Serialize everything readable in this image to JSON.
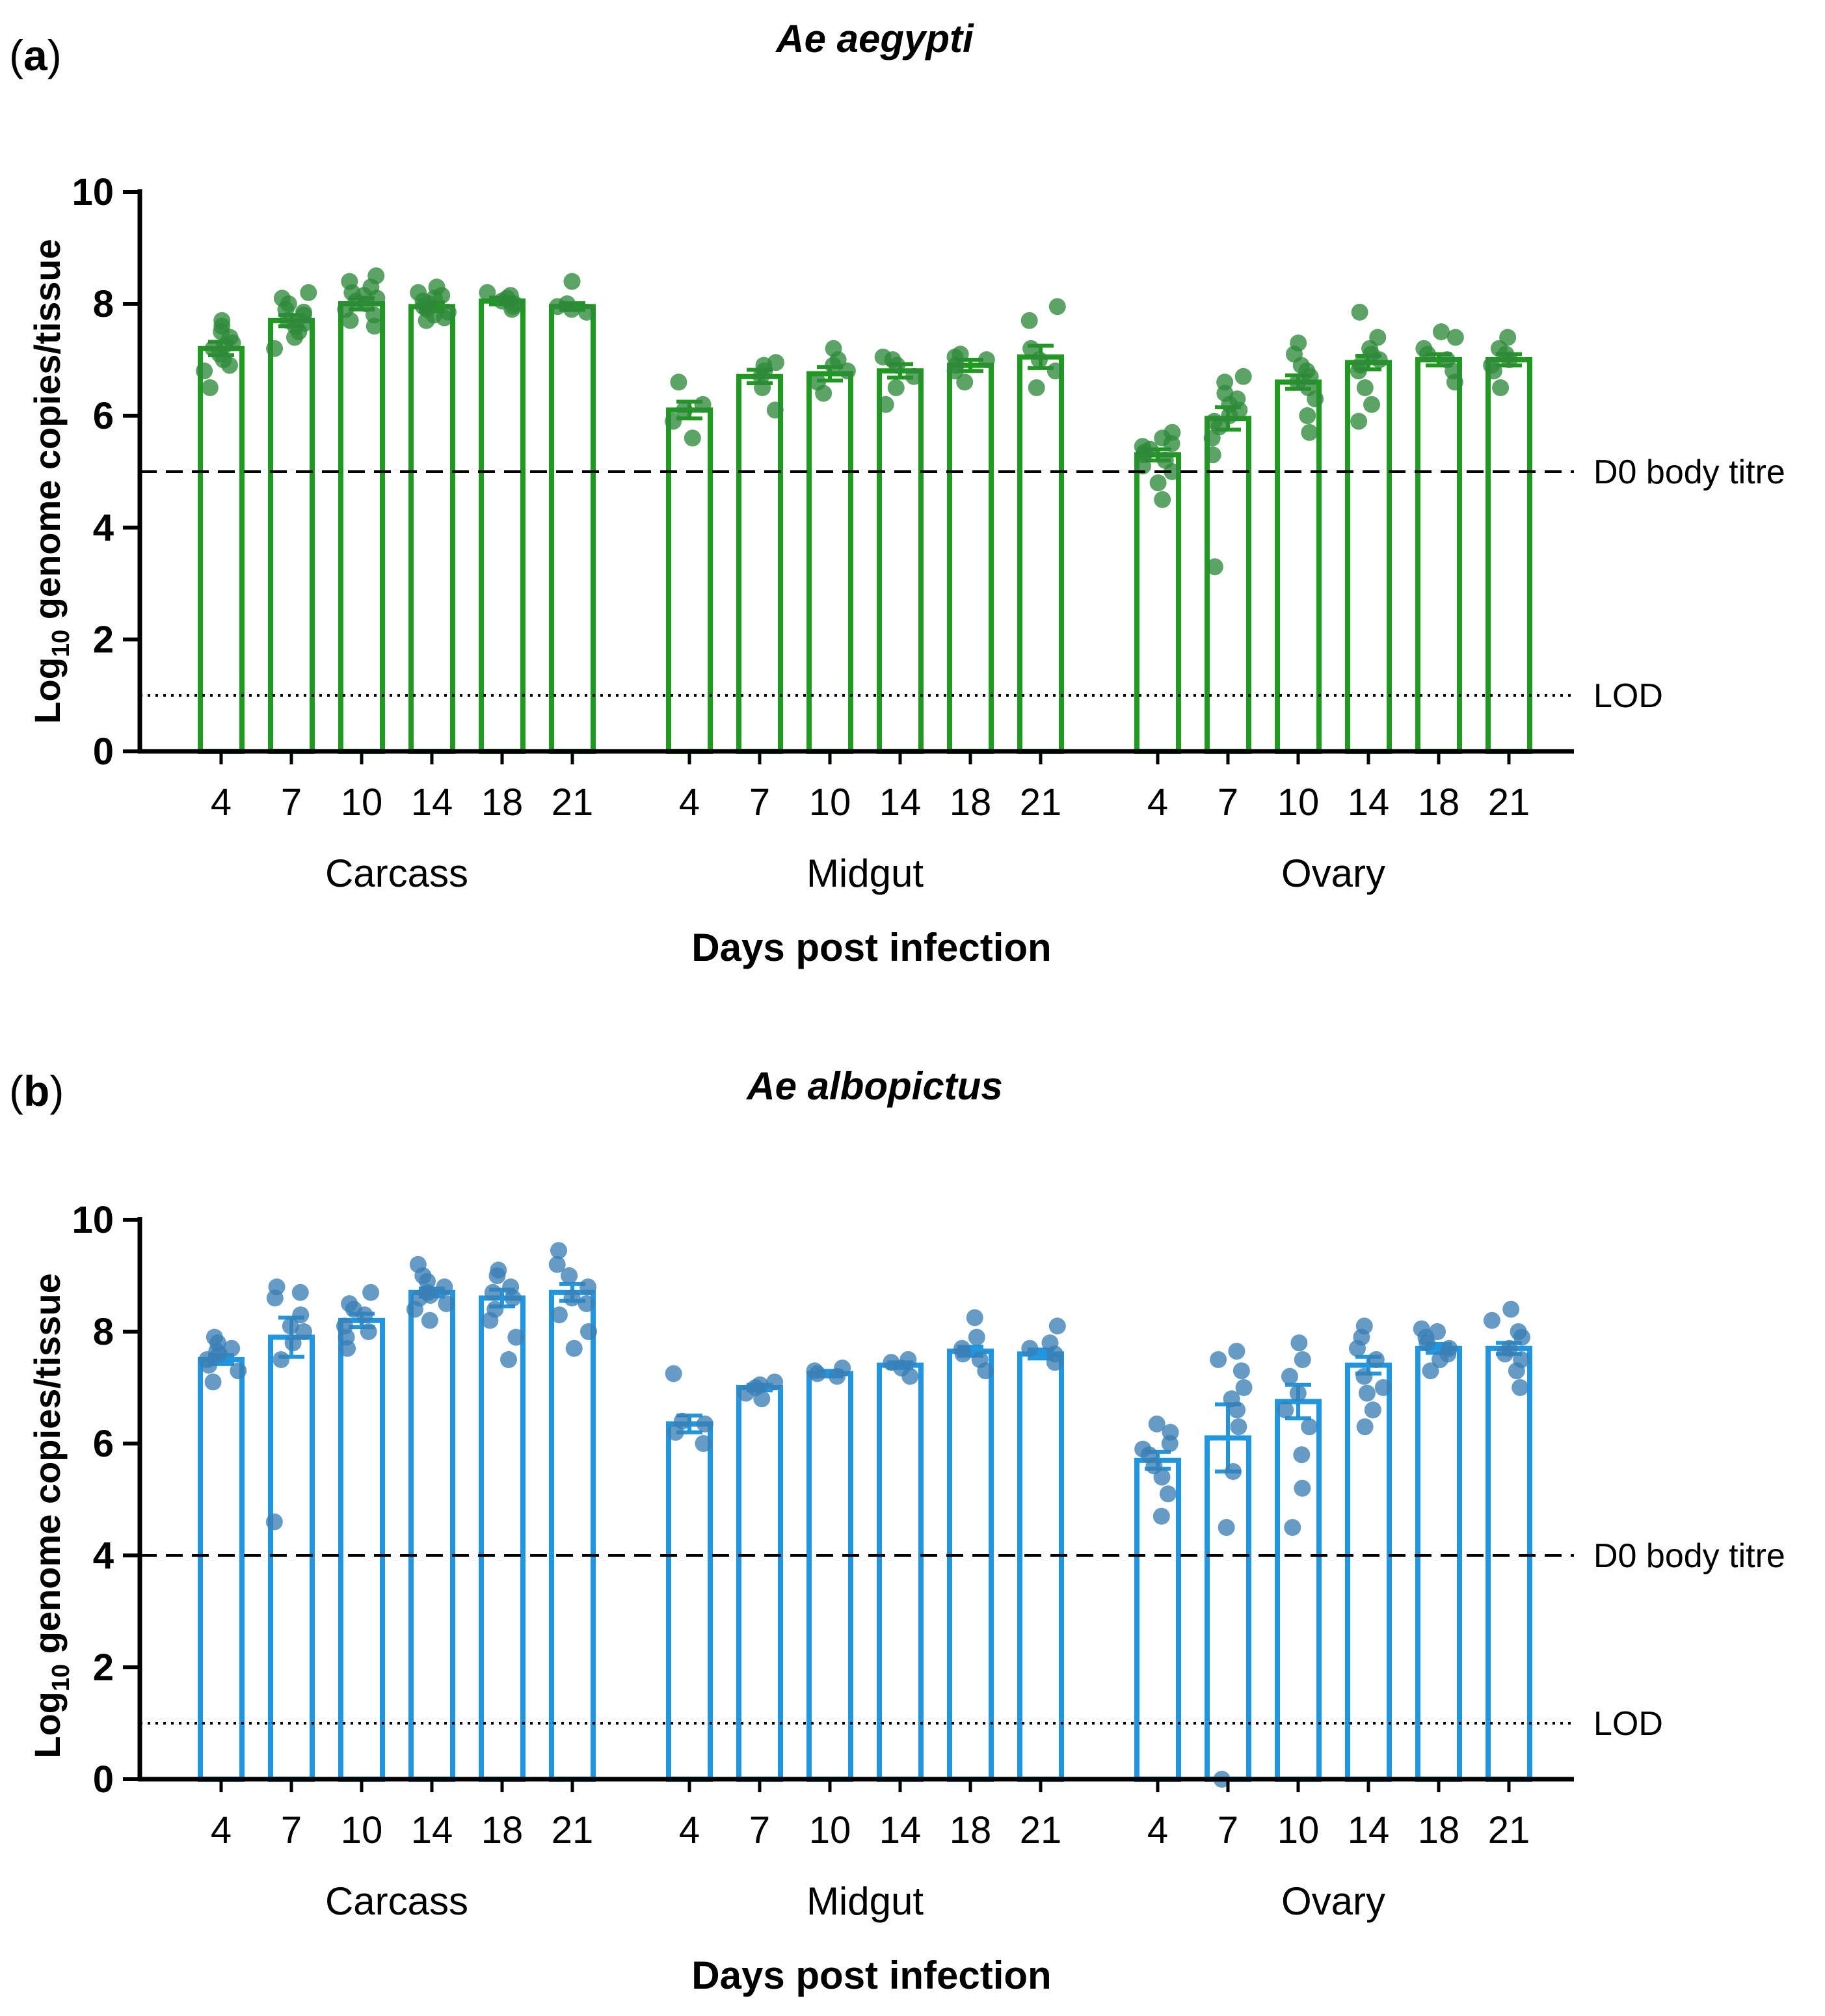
{
  "chart_data": [
    {
      "type": "bar",
      "panel_label": "a",
      "title": "Ae aegypti",
      "ylabel_prefix": "Log",
      "ylabel_sub": "10",
      "ylabel_rest": " genome copies/tissue",
      "xlabel": "Days post infection",
      "ylim": [
        0,
        10
      ],
      "yticks": [
        "0",
        "2",
        "4",
        "6",
        "8",
        "10"
      ],
      "color": "#1e9a1e",
      "point_color": "#2e8b3a",
      "reference_lines": [
        {
          "label": "D0 body titre",
          "value": 5,
          "style": "dashed"
        },
        {
          "label": "LOD",
          "value": 1,
          "style": "dotted"
        }
      ],
      "groups": [
        {
          "name": "Carcass",
          "days": [
            "4",
            "7",
            "10",
            "14",
            "18",
            "21"
          ],
          "means": [
            7.2,
            7.7,
            8.0,
            7.95,
            8.05,
            7.95
          ],
          "sem": [
            0.12,
            0.1,
            0.1,
            0.08,
            0.06,
            0.06
          ],
          "points": [
            [
              6.5,
              6.9,
              7.0,
              7.1,
              7.2,
              7.3,
              7.4,
              7.5,
              7.6,
              7.7,
              6.8,
              7.25
            ],
            [
              7.2,
              7.4,
              7.6,
              7.7,
              7.8,
              7.9,
              8.0,
              8.1,
              8.2,
              7.5,
              7.65,
              7.85
            ],
            [
              7.6,
              7.8,
              7.9,
              8.0,
              8.1,
              8.2,
              8.3,
              8.4,
              8.5,
              7.7,
              8.05,
              8.15
            ],
            [
              7.7,
              7.8,
              7.9,
              8.0,
              8.1,
              8.2,
              8.3,
              7.85,
              8.05,
              7.95,
              8.15,
              7.75
            ],
            [
              7.9,
              8.0,
              8.1,
              8.2,
              8.05,
              7.95,
              8.15
            ],
            [
              7.85,
              7.9,
              8.0,
              8.4,
              7.95
            ]
          ]
        },
        {
          "name": "Midgut",
          "days": [
            "4",
            "7",
            "10",
            "14",
            "18",
            "21"
          ],
          "means": [
            6.1,
            6.7,
            6.75,
            6.8,
            6.9,
            7.05
          ],
          "sem": [
            0.15,
            0.12,
            0.12,
            0.12,
            0.1,
            0.2
          ],
          "points": [
            [
              5.6,
              5.9,
              6.1,
              6.2,
              6.6
            ],
            [
              6.1,
              6.5,
              6.7,
              6.8,
              6.9,
              6.95
            ],
            [
              6.4,
              6.6,
              6.8,
              6.9,
              7.0,
              7.2
            ],
            [
              6.2,
              6.5,
              6.7,
              6.9,
              7.0,
              7.05
            ],
            [
              6.6,
              6.8,
              6.9,
              7.0,
              7.05,
              7.1
            ],
            [
              6.5,
              6.8,
              7.0,
              7.2,
              7.7,
              7.95
            ]
          ]
        },
        {
          "name": "Ovary",
          "days": [
            "4",
            "7",
            "10",
            "14",
            "18",
            "21"
          ],
          "means": [
            5.3,
            5.95,
            6.6,
            6.95,
            7.0,
            7.0
          ],
          "sem": [
            0.1,
            0.2,
            0.12,
            0.12,
            0.1,
            0.1
          ],
          "points": [
            [
              4.5,
              4.8,
              5.0,
              5.2,
              5.3,
              5.4,
              5.5,
              5.6,
              5.7,
              5.1,
              5.35,
              5.45
            ],
            [
              3.3,
              5.3,
              5.6,
              5.8,
              6.0,
              6.2,
              6.4,
              6.6,
              6.7,
              5.9,
              6.1,
              6.3
            ],
            [
              5.7,
              6.0,
              6.3,
              6.5,
              6.7,
              6.9,
              7.1,
              7.3,
              6.6,
              6.8
            ],
            [
              5.9,
              6.2,
              6.5,
              6.8,
              7.0,
              7.2,
              7.4,
              7.85,
              6.9,
              7.1
            ],
            [
              6.6,
              6.8,
              7.0,
              7.2,
              7.4,
              7.5,
              7.1
            ],
            [
              6.5,
              6.8,
              7.0,
              7.2,
              7.4,
              7.1,
              6.9
            ]
          ]
        }
      ]
    },
    {
      "type": "bar",
      "panel_label": "b",
      "title": "Ae albopictus",
      "ylabel_prefix": "Log",
      "ylabel_sub": "10",
      "ylabel_rest": " genome copies/tissue",
      "xlabel": "Days post infection",
      "ylim": [
        0,
        10
      ],
      "yticks": [
        "0",
        "2",
        "4",
        "6",
        "8",
        "10"
      ],
      "color": "#2196e0",
      "point_color": "#3a7fb5",
      "reference_lines": [
        {
          "label": "D0 body titre",
          "value": 4,
          "style": "dashed"
        },
        {
          "label": "LOD",
          "value": 1,
          "style": "dotted"
        }
      ],
      "groups": [
        {
          "name": "Carcass",
          "days": [
            "4",
            "7",
            "10",
            "14",
            "18",
            "21"
          ],
          "means": [
            7.5,
            7.9,
            8.2,
            8.7,
            8.6,
            8.7
          ],
          "sem": [
            0.08,
            0.35,
            0.12,
            0.07,
            0.15,
            0.15
          ],
          "points": [
            [
              7.1,
              7.3,
              7.5,
              7.6,
              7.7,
              7.8,
              7.9,
              7.4,
              7.65
            ],
            [
              4.6,
              7.5,
              7.8,
              8.0,
              8.3,
              8.6,
              8.8,
              8.7,
              8.1
            ],
            [
              7.7,
              7.9,
              8.1,
              8.3,
              8.5,
              8.7,
              8.0,
              8.4
            ],
            [
              8.2,
              8.4,
              8.6,
              8.7,
              8.8,
              8.9,
              9.0,
              9.2,
              8.5,
              8.65
            ],
            [
              7.5,
              7.9,
              8.2,
              8.4,
              8.6,
              8.8,
              9.0,
              9.1,
              8.7
            ],
            [
              7.7,
              8.0,
              8.3,
              8.6,
              8.8,
              9.0,
              9.2,
              9.45,
              8.5
            ]
          ]
        },
        {
          "name": "Midgut",
          "days": [
            "4",
            "7",
            "10",
            "14",
            "18",
            "21"
          ],
          "means": [
            6.35,
            7.0,
            7.25,
            7.4,
            7.65,
            7.6
          ],
          "sem": [
            0.15,
            0.05,
            0.05,
            0.05,
            0.08,
            0.08
          ],
          "points": [
            [
              6.0,
              6.2,
              6.35,
              6.4,
              7.25
            ],
            [
              6.8,
              6.9,
              7.0,
              7.05,
              7.1
            ],
            [
              7.2,
              7.25,
              7.3,
              7.35
            ],
            [
              7.2,
              7.35,
              7.45,
              7.5
            ],
            [
              7.3,
              7.5,
              7.6,
              7.7,
              7.9,
              8.25
            ],
            [
              7.45,
              7.6,
              7.7,
              7.8,
              8.1
            ]
          ]
        },
        {
          "name": "Ovary",
          "days": [
            "4",
            "7",
            "10",
            "14",
            "18",
            "21"
          ],
          "means": [
            5.7,
            6.1,
            6.75,
            7.4,
            7.7,
            7.7
          ],
          "sem": [
            0.15,
            0.6,
            0.3,
            0.15,
            0.08,
            0.1
          ],
          "points": [
            [
              4.7,
              5.1,
              5.4,
              5.6,
              5.8,
              6.0,
              6.2,
              6.35,
              5.9
            ],
            [
              0.0,
              4.5,
              5.5,
              6.3,
              6.8,
              7.0,
              7.3,
              7.5,
              7.65,
              6.6
            ],
            [
              4.5,
              5.2,
              5.8,
              6.3,
              6.6,
              6.9,
              7.2,
              7.5,
              7.8
            ],
            [
              6.3,
              6.6,
              6.9,
              7.2,
              7.5,
              7.7,
              7.9,
              8.1,
              7.0
            ],
            [
              7.3,
              7.5,
              7.6,
              7.7,
              7.8,
              7.9,
              8.0,
              8.05
            ],
            [
              7.0,
              7.3,
              7.5,
              7.7,
              7.9,
              8.0,
              8.2,
              8.4,
              7.6
            ]
          ]
        }
      ]
    }
  ]
}
